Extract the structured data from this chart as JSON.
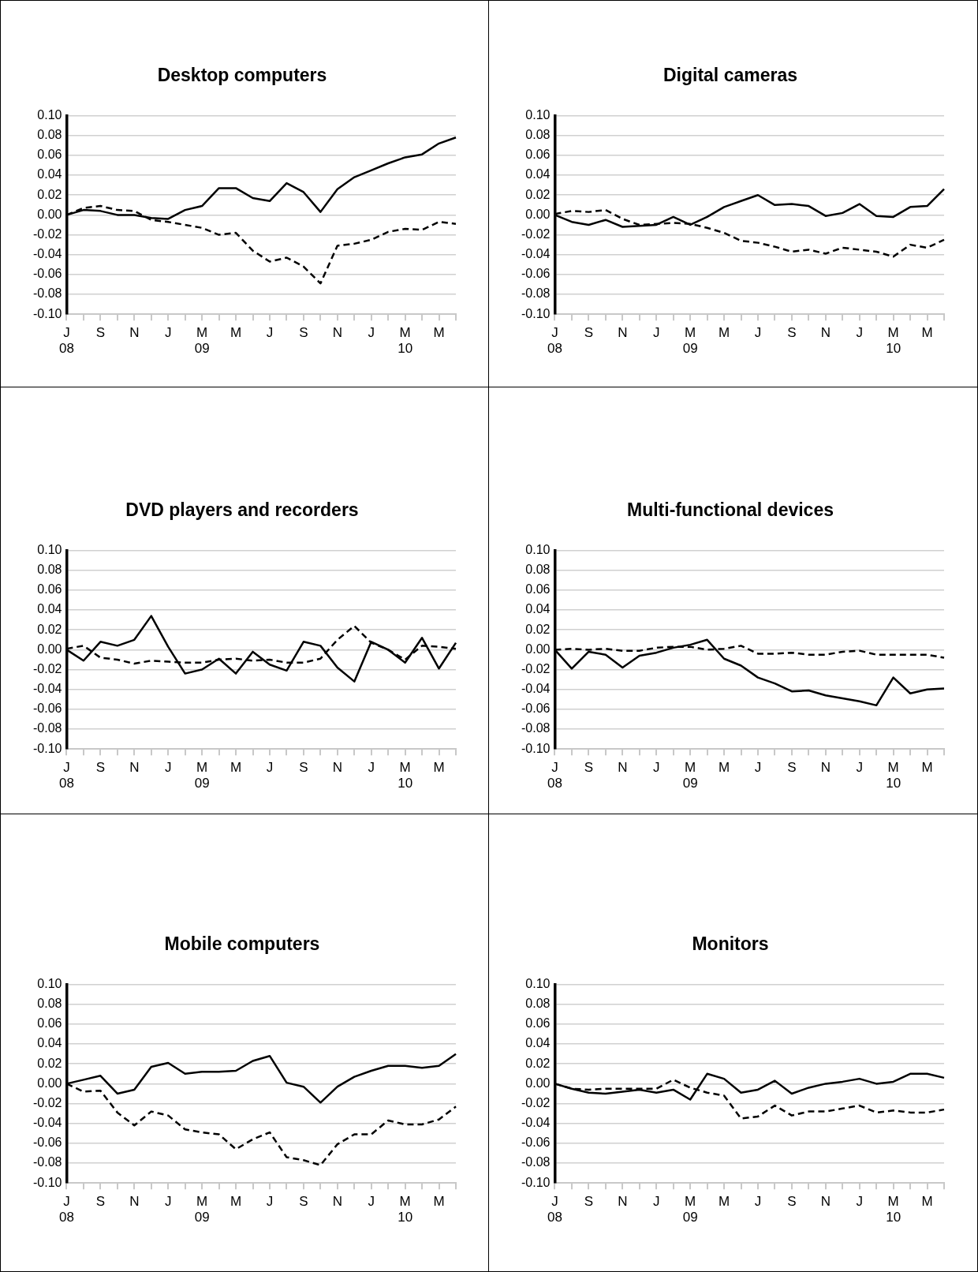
{
  "chart_data": [
    {
      "type": "line",
      "title": "Desktop computers",
      "categories": [
        "J\n08",
        null,
        "S",
        null,
        "N",
        null,
        "J",
        null,
        "M\n09",
        null,
        "M",
        null,
        "J",
        null,
        "S",
        null,
        "N",
        null,
        "J",
        null,
        "M\n10",
        null,
        "M",
        null
      ],
      "series": [
        {
          "color": "#000000",
          "line_style": "solid",
          "values": [
            0,
            0.005,
            0.004,
            0,
            0,
            -0.003,
            -0.004,
            0.005,
            0.009,
            0.027,
            0.027,
            0.017,
            0.014,
            0.032,
            0.023,
            0.003,
            0.026,
            0.038,
            0.045,
            0.052,
            0.058,
            0.061,
            0.072,
            0.078
          ]
        },
        {
          "color": "#000000",
          "line_style": "dashed",
          "values": [
            0,
            0.007,
            0.009,
            0.005,
            0.004,
            -0.005,
            -0.007,
            -0.01,
            -0.013,
            -0.02,
            -0.018,
            -0.036,
            -0.047,
            -0.043,
            -0.052,
            -0.069,
            -0.031,
            -0.029,
            -0.025,
            -0.017,
            -0.014,
            -0.015,
            -0.007,
            -0.009
          ]
        }
      ],
      "ylim": [
        -0.1,
        0.1
      ],
      "yticks": [
        {
          "value": -0.1,
          "label": "-0.10"
        },
        -0.08,
        -0.06,
        -0.04,
        -0.02,
        {
          "value": 0,
          "label": "0.00"
        },
        0.02,
        0.04,
        0.06,
        0.08,
        {
          "value": 0.1,
          "label": "0.10"
        }
      ],
      "grid": "y",
      "legend": false,
      "marker": "none"
    },
    {
      "type": "line",
      "title": "Digital cameras",
      "categories": [
        "J\n08",
        null,
        "S",
        null,
        "N",
        null,
        "J",
        null,
        "M\n09",
        null,
        "M",
        null,
        "J",
        null,
        "S",
        null,
        "N",
        null,
        "J",
        null,
        "M\n10",
        null,
        "M",
        null
      ],
      "series": [
        {
          "color": "#000000",
          "line_style": "solid",
          "values": [
            0,
            -0.007,
            -0.01,
            -0.005,
            -0.012,
            -0.011,
            -0.01,
            -0.002,
            -0.01,
            -0.002,
            0.008,
            0.014,
            0.02,
            0.01,
            0.011,
            0.009,
            -0.001,
            0.002,
            0.011,
            -0.001,
            -0.002,
            0.008,
            0.009,
            0.026
          ]
        },
        {
          "color": "#000000",
          "line_style": "dashed",
          "values": [
            0.001,
            0.004,
            0.003,
            0.005,
            -0.004,
            -0.01,
            -0.009,
            -0.008,
            -0.009,
            -0.013,
            -0.018,
            -0.026,
            -0.028,
            -0.032,
            -0.037,
            -0.035,
            -0.039,
            -0.033,
            -0.035,
            -0.037,
            -0.042,
            -0.03,
            -0.033,
            -0.025
          ]
        }
      ],
      "ylim": [
        -0.1,
        0.1
      ],
      "yticks": [
        {
          "value": -0.1,
          "label": "-0.10"
        },
        -0.08,
        -0.06,
        -0.04,
        -0.02,
        {
          "value": 0,
          "label": "0.00"
        },
        0.02,
        0.04,
        0.06,
        0.08,
        {
          "value": 0.1,
          "label": "0.10"
        }
      ],
      "grid": "y",
      "legend": false,
      "marker": "none"
    },
    {
      "type": "line",
      "title": "DVD players and recorders",
      "categories": [
        "J\n08",
        null,
        "S",
        null,
        "N",
        null,
        "J",
        null,
        "M\n09",
        null,
        "M",
        null,
        "J",
        null,
        "S",
        null,
        "N",
        null,
        "J",
        null,
        "M\n10",
        null,
        "M",
        null
      ],
      "series": [
        {
          "color": "#000000",
          "line_style": "solid",
          "values": [
            0,
            -0.011,
            0.008,
            0.004,
            0.01,
            0.034,
            0.003,
            -0.024,
            -0.02,
            -0.009,
            -0.024,
            -0.002,
            -0.015,
            -0.021,
            0.008,
            0.004,
            -0.018,
            -0.032,
            0.008,
            0,
            -0.013,
            0.012,
            -0.019,
            0.007
          ]
        },
        {
          "color": "#000000",
          "line_style": "dashed",
          "values": [
            0.001,
            0.004,
            -0.008,
            -0.01,
            -0.014,
            -0.011,
            -0.012,
            -0.013,
            -0.013,
            -0.01,
            -0.009,
            -0.011,
            -0.01,
            -0.013,
            -0.013,
            -0.009,
            0.01,
            0.024,
            0.007,
            0,
            -0.01,
            0.004,
            0.003,
            0.001
          ]
        }
      ],
      "ylim": [
        -0.1,
        0.1
      ],
      "yticks": [
        {
          "value": -0.1,
          "label": "-0.10"
        },
        -0.08,
        -0.06,
        -0.04,
        -0.02,
        {
          "value": 0,
          "label": "0.00"
        },
        0.02,
        0.04,
        0.06,
        0.08,
        {
          "value": 0.1,
          "label": "0.10"
        }
      ],
      "grid": "y",
      "legend": false,
      "marker": "none"
    },
    {
      "type": "line",
      "title": "Multi-functional devices",
      "categories": [
        "J\n08",
        null,
        "S",
        null,
        "N",
        null,
        "J",
        null,
        "M\n09",
        null,
        "M",
        null,
        "J",
        null,
        "S",
        null,
        "N",
        null,
        "J",
        null,
        "M\n10",
        null,
        "M",
        null
      ],
      "series": [
        {
          "color": "#000000",
          "line_style": "solid",
          "values": [
            0,
            -0.019,
            -0.002,
            -0.005,
            -0.018,
            -0.006,
            -0.003,
            0.002,
            0.005,
            0.01,
            -0.009,
            -0.016,
            -0.028,
            -0.034,
            -0.042,
            -0.041,
            -0.046,
            -0.049,
            -0.052,
            -0.056,
            -0.028,
            -0.044,
            -0.04,
            -0.039
          ]
        },
        {
          "color": "#000000",
          "line_style": "dashed",
          "values": [
            0,
            0.001,
            0,
            0.001,
            -0.001,
            -0.001,
            0.002,
            0.003,
            0.003,
            0,
            0.001,
            0.004,
            -0.004,
            -0.004,
            -0.003,
            -0.005,
            -0.005,
            -0.002,
            -0.001,
            -0.005,
            -0.005,
            -0.005,
            -0.005,
            -0.008
          ]
        }
      ],
      "ylim": [
        -0.1,
        0.1
      ],
      "yticks": [
        {
          "value": -0.1,
          "label": "-0.10"
        },
        -0.08,
        -0.06,
        -0.04,
        -0.02,
        {
          "value": 0,
          "label": "0.00"
        },
        0.02,
        0.04,
        0.06,
        0.08,
        {
          "value": 0.1,
          "label": "0.10"
        }
      ],
      "grid": "y",
      "legend": false,
      "marker": "none"
    },
    {
      "type": "line",
      "title": "Mobile computers",
      "categories": [
        "J\n08",
        null,
        "S",
        null,
        "N",
        null,
        "J",
        null,
        "M\n09",
        null,
        "M",
        null,
        "J",
        null,
        "S",
        null,
        "N",
        null,
        "J",
        null,
        "M\n10",
        null,
        "M",
        null
      ],
      "series": [
        {
          "color": "#000000",
          "line_style": "solid",
          "values": [
            0,
            0.004,
            0.008,
            -0.01,
            -0.006,
            0.017,
            0.021,
            0.01,
            0.012,
            0.012,
            0.013,
            0.023,
            0.028,
            0.001,
            -0.003,
            -0.019,
            -0.003,
            0.007,
            0.013,
            0.018,
            0.018,
            0.016,
            0.018,
            0.03
          ]
        },
        {
          "color": "#000000",
          "line_style": "dashed",
          "values": [
            0,
            -0.008,
            -0.007,
            -0.029,
            -0.042,
            -0.028,
            -0.032,
            -0.046,
            -0.049,
            -0.051,
            -0.066,
            -0.056,
            -0.049,
            -0.074,
            -0.077,
            -0.082,
            -0.061,
            -0.051,
            -0.051,
            -0.037,
            -0.041,
            -0.041,
            -0.036,
            -0.023
          ]
        }
      ],
      "ylim": [
        -0.1,
        0.1
      ],
      "yticks": [
        {
          "value": -0.1,
          "label": "-0.10"
        },
        -0.08,
        -0.06,
        -0.04,
        -0.02,
        {
          "value": 0,
          "label": "0.00"
        },
        0.02,
        0.04,
        0.06,
        0.08,
        {
          "value": 0.1,
          "label": "0.10"
        }
      ],
      "grid": "y",
      "legend": false,
      "marker": "none"
    },
    {
      "type": "line",
      "title": "Monitors",
      "categories": [
        "J\n08",
        null,
        "S",
        null,
        "N",
        null,
        "J",
        null,
        "M\n09",
        null,
        "M",
        null,
        "J",
        null,
        "S",
        null,
        "N",
        null,
        "J",
        null,
        "M\n10",
        null,
        "M",
        null
      ],
      "series": [
        {
          "color": "#000000",
          "line_style": "solid",
          "values": [
            0,
            -0.005,
            -0.009,
            -0.01,
            -0.008,
            -0.006,
            -0.009,
            -0.006,
            -0.016,
            0.01,
            0.005,
            -0.009,
            -0.006,
            0.003,
            -0.01,
            -0.004,
            0,
            0.002,
            0.005,
            0,
            0.002,
            0.01,
            0.01,
            0.006
          ]
        },
        {
          "color": "#000000",
          "line_style": "dashed",
          "values": [
            0,
            -0.005,
            -0.006,
            -0.005,
            -0.005,
            -0.005,
            -0.005,
            0.004,
            -0.004,
            -0.009,
            -0.012,
            -0.035,
            -0.033,
            -0.022,
            -0.032,
            -0.028,
            -0.028,
            -0.025,
            -0.022,
            -0.029,
            -0.027,
            -0.029,
            -0.029,
            -0.026
          ]
        }
      ],
      "ylim": [
        -0.1,
        0.1
      ],
      "yticks": [
        {
          "value": -0.1,
          "label": "-0.10"
        },
        -0.08,
        -0.06,
        -0.04,
        -0.02,
        {
          "value": 0,
          "label": "0.00"
        },
        0.02,
        0.04,
        0.06,
        0.08,
        {
          "value": 0.1,
          "label": "0.10"
        }
      ],
      "grid": "y",
      "legend": false,
      "marker": "none"
    }
  ]
}
